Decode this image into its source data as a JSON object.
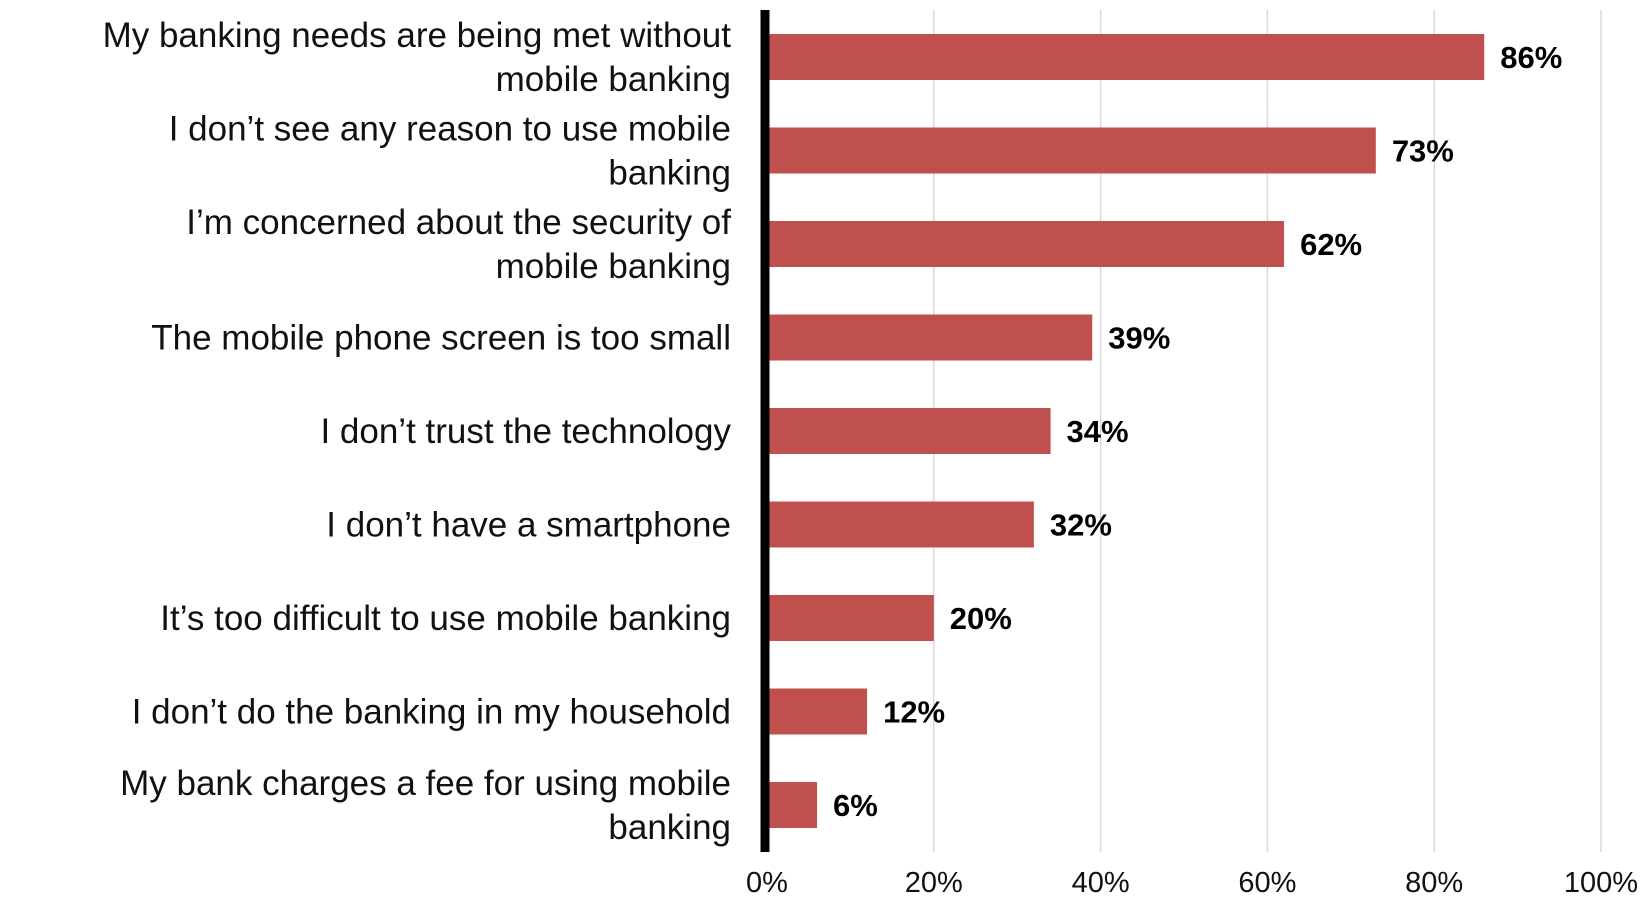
{
  "chart_data": {
    "type": "bar",
    "orientation": "horizontal",
    "categories": [
      "My banking needs are being met without mobile banking",
      "I don’t see any reason to use mobile banking",
      "I’m concerned about the security of mobile banking",
      "The mobile phone screen is too small",
      "I don’t trust the technology",
      "I don’t have a smartphone",
      "It’s too difficult to use mobile banking",
      "I don’t do the banking in my household",
      "My bank charges a fee for using mobile banking"
    ],
    "category_lines": [
      [
        "My banking needs are being met without",
        "mobile banking"
      ],
      [
        "I don’t see any reason to use mobile",
        "banking"
      ],
      [
        "I’m concerned about the security of",
        "mobile banking"
      ],
      [
        "The mobile phone screen is too small"
      ],
      [
        "I don’t trust the technology"
      ],
      [
        "I don’t have a smartphone"
      ],
      [
        "It’s too difficult to use mobile banking"
      ],
      [
        "I don’t do the banking in my household"
      ],
      [
        "My bank charges a fee for using mobile",
        "banking"
      ]
    ],
    "values": [
      86,
      73,
      62,
      39,
      34,
      32,
      20,
      12,
      6
    ],
    "value_labels": [
      "86%",
      "73%",
      "62%",
      "39%",
      "34%",
      "32%",
      "20%",
      "12%",
      "6%"
    ],
    "title": "",
    "xlabel": "",
    "ylabel": "",
    "xlim": [
      0,
      100
    ],
    "xticks": [
      0,
      20,
      40,
      60,
      80,
      100
    ],
    "xtick_labels": [
      "0%",
      "20%",
      "40%",
      "60%",
      "80%",
      "100%"
    ],
    "grid": "vertical",
    "legend": "none",
    "colors": {
      "bar": "#c0504d",
      "axis": "#000000",
      "grid": "#d9d9d9"
    }
  }
}
